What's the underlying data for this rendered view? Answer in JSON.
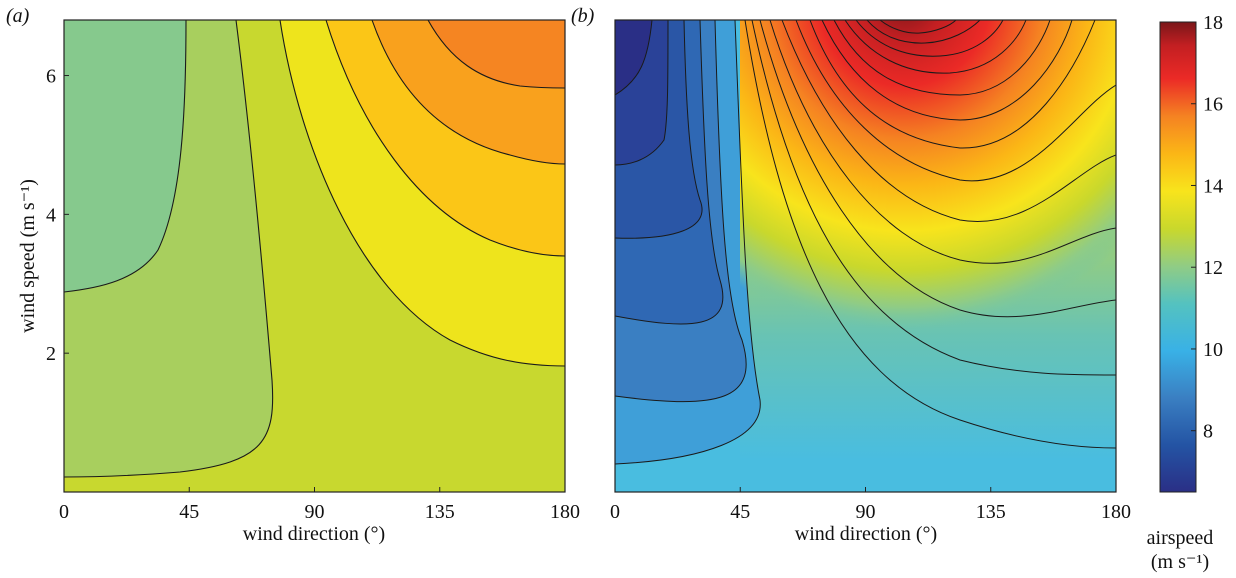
{
  "chart_data": [
    {
      "id": "a",
      "type": "heatmap",
      "panel_label": "(a)",
      "title": "",
      "xlabel": "wind direction (°)",
      "ylabel": "wind speed (m s⁻¹)",
      "xlim": [
        0,
        180
      ],
      "ylim": [
        0,
        6.8
      ],
      "x_ticks": [
        "0",
        "45",
        "90",
        "135",
        "180"
      ],
      "y_ticks": [
        "2",
        "4",
        "6"
      ],
      "contour_levels": [
        12,
        12.5,
        13,
        13.5,
        14,
        14.5,
        15,
        15.5,
        16
      ],
      "regions": [
        {
          "range": "11.5-12",
          "color": "#86c98d"
        },
        {
          "range": "12-12.5",
          "color": "#a8cf5e"
        },
        {
          "range": "12.5-13",
          "color": "#c8d82f"
        },
        {
          "range": "13-13.5",
          "color": "#eee41c"
        },
        {
          "range": "13.5-14",
          "color": "#fbc617"
        },
        {
          "range": "14-14.5",
          "color": "#f9a11d"
        },
        {
          "range": "14.5-15",
          "color": "#f58522"
        },
        {
          "range": "15-15.5",
          "color": "#ef6426"
        }
      ]
    },
    {
      "id": "b",
      "type": "heatmap",
      "panel_label": "(b)",
      "title": "",
      "xlabel": "wind direction (°)",
      "ylabel": "",
      "xlim": [
        0,
        180
      ],
      "ylim": [
        0,
        6.8
      ],
      "x_ticks": [
        "0",
        "45",
        "90",
        "135",
        "180"
      ],
      "y_ticks": [],
      "contour_levels": [
        7,
        7.5,
        8,
        8.5,
        9,
        9.5,
        10,
        10.5,
        11,
        11.5,
        12,
        12.5,
        13,
        13.5,
        14,
        14.5,
        15,
        15.5,
        16,
        16.5,
        17,
        17.5
      ],
      "regions": "airspeed field, about 7 to 18 m s⁻¹, lowest at 0° with high wind speed, highest near 100° at maximum wind speed"
    }
  ],
  "colorbar": {
    "range": [
      6.5,
      18
    ],
    "ticks": [
      "8",
      "10",
      "12",
      "14",
      "16",
      "18"
    ],
    "label_line1": "airspeed",
    "label_line2": "(m s⁻¹)",
    "colors": [
      "#2a2f86",
      "#2454a4",
      "#3a7fc2",
      "#39b1e6",
      "#54c2c0",
      "#90cc85",
      "#c9d82c",
      "#f8e41c",
      "#fbb616",
      "#f58222",
      "#eb2a26",
      "#c31f22",
      "#7a1619"
    ]
  }
}
